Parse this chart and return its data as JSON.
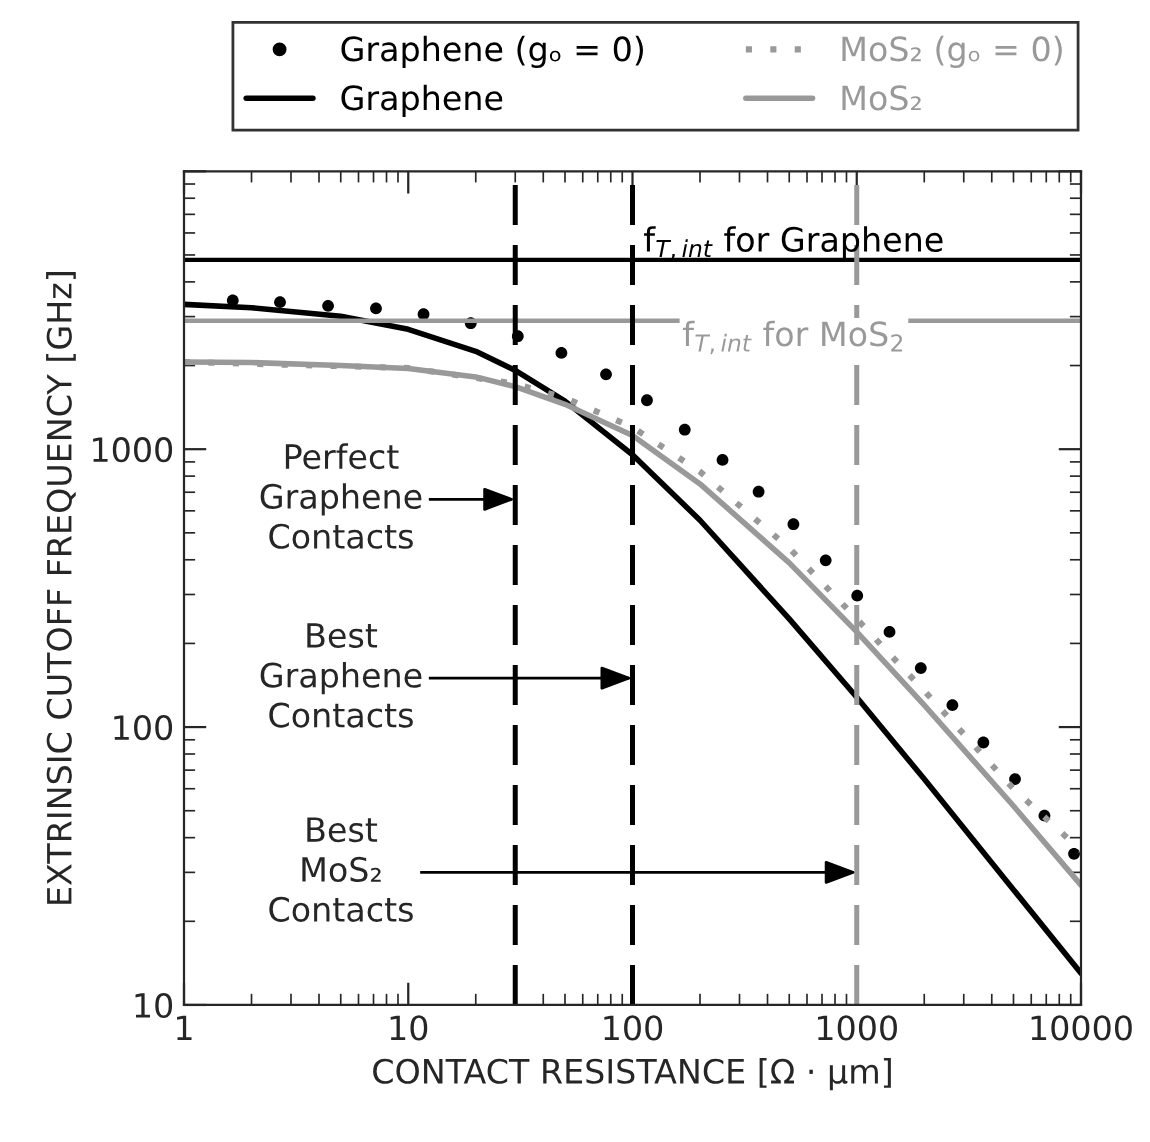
{
  "chart_data": {
    "type": "line",
    "xlabel": "CONTACT RESISTANCE [Ω · μm]",
    "ylabel": "EXTRINSIC CUTOFF FREQUENCY [GHz]",
    "log": "xy",
    "xlim": [
      1,
      10000
    ],
    "ylim": [
      10,
      10000
    ],
    "xticks": [
      1,
      10,
      100,
      1000,
      10000
    ],
    "yticks": [
      10,
      100,
      1000,
      {
        "value": 10000,
        "label": null
      }
    ],
    "grid": false,
    "legend": "top",
    "series": [
      {
        "name": "Graphene (gₒ = 0)",
        "type": "scatter",
        "marker": "circle",
        "color": "#000000",
        "x": [
          1.65,
          2.68,
          4.39,
          7.18,
          11.7,
          19,
          30.8,
          48.2,
          76.2,
          116,
          171,
          252,
          365,
          522,
          727,
          1005,
          1400,
          1930,
          2670,
          3670,
          5080,
          6870,
          9310
        ],
        "values": [
          3430,
          3380,
          3280,
          3210,
          3060,
          2840,
          2550,
          2220,
          1860,
          1500,
          1175,
          915,
          703,
          537,
          398,
          297,
          220,
          163,
          120,
          88,
          65,
          48,
          35
        ]
      },
      {
        "name": "Graphene",
        "line_style": "solid",
        "color": "#000000",
        "x": [
          1,
          2,
          5,
          10,
          20,
          30,
          50,
          100,
          200,
          500,
          1000,
          2000,
          5000,
          10000
        ],
        "values": [
          3320,
          3230,
          3010,
          2700,
          2250,
          1920,
          1490,
          955,
          555,
          245,
          128,
          65,
          26,
          13
        ]
      },
      {
        "name": "MoS₂ (gₒ = 0)",
        "type": "line",
        "line_style": "dotted",
        "color": "#999999",
        "x": [
          1,
          10,
          30,
          50,
          100,
          200,
          500,
          1000,
          2000,
          5000,
          10000
        ],
        "values": [
          2060,
          1960,
          1720,
          1530,
          1200,
          830,
          440,
          245,
          135,
          60,
          36
        ]
      },
      {
        "name": "MoS₂",
        "line_style": "solid",
        "color": "#999999",
        "x": [
          1,
          2,
          5,
          10,
          20,
          30,
          50,
          100,
          200,
          500,
          1000,
          2000,
          5000,
          10000
        ],
        "values": [
          2060,
          2050,
          2000,
          1950,
          1820,
          1680,
          1450,
          1120,
          750,
          390,
          220,
          120,
          52,
          27
        ]
      }
    ],
    "ref_lines": [
      {
        "axis": "y",
        "value": 4800,
        "label": "f$_{T,int}$ for Graphene",
        "color": "#000000",
        "line_style": "solid"
      },
      {
        "axis": "y",
        "value": 2900,
        "label": "f$_{T,int}$ for MoS$_{2}$",
        "color": "#999999",
        "line_style": "solid"
      },
      {
        "axis": "x",
        "value": 30,
        "color": "#000000",
        "line_style": "dashed"
      },
      {
        "axis": "x",
        "value": 100,
        "color": "#000000",
        "line_style": "dashed"
      },
      {
        "axis": "x",
        "value": 1000,
        "color": "#999999",
        "line_style": "dashed"
      }
    ],
    "annotations": [
      {
        "text": "Perfect\nGraphene\nContacts",
        "x": 30,
        "y": 660
      },
      {
        "text": "Best\nGraphene\nContacts",
        "x": 100,
        "y": 150
      },
      {
        "text": "Best\nMoS₂\nContacts",
        "x": 1000,
        "y": 30
      }
    ]
  }
}
